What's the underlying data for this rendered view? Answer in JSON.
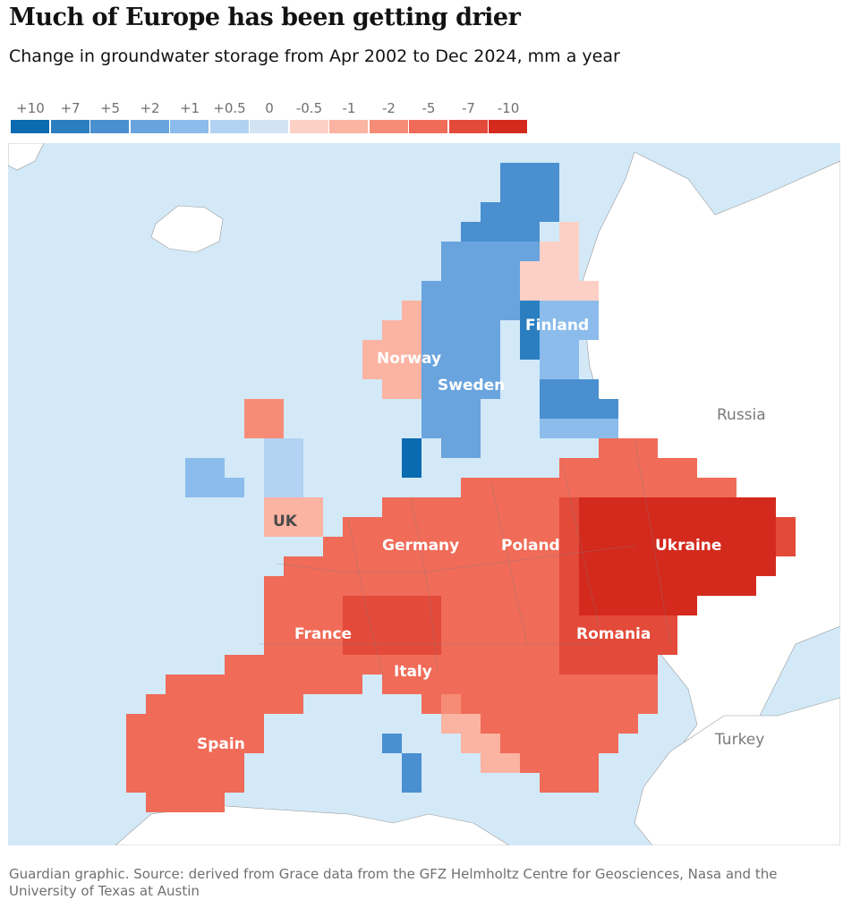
{
  "title": "Much of Europe has been getting drier",
  "subtitle": "Change in groundwater storage from Apr 2002 to Dec 2024, mm a year",
  "legend": {
    "labels": [
      "+10",
      "+7",
      "+5",
      "+2",
      "+1",
      "+0.5",
      "0",
      "-0.5",
      "-1",
      "-2",
      "-5",
      "-7",
      "-10"
    ],
    "colors": [
      "#0b6bb0",
      "#2b7fc1",
      "#4a8fd0",
      "#6aa4de",
      "#8cbceb",
      "#b2d2f1",
      "#d2e3f3",
      "#fdd0c6",
      "#fbb3a2",
      "#f78c76",
      "#f06b58",
      "#e34a3a",
      "#d42a1e"
    ]
  },
  "map_labels": {
    "norway": "Norway",
    "sweden": "Sweden",
    "finland": "Finland",
    "russia": "Russia",
    "uk": "UK",
    "germany": "Germany",
    "poland": "Poland",
    "ukraine": "Ukraine",
    "france": "France",
    "romania": "Romania",
    "italy": "Italy",
    "spain": "Spain",
    "turkey": "Turkey"
  },
  "colors": {
    "sea": "#d3e9f8",
    "land_outside": "#ffffff",
    "border": "#8a8a8a"
  },
  "source": "Guardian graphic. Source: derived from Grace data from the GFZ Helmholtz Centre for Geosciences, Nasa and the University of Texas at Austin"
}
